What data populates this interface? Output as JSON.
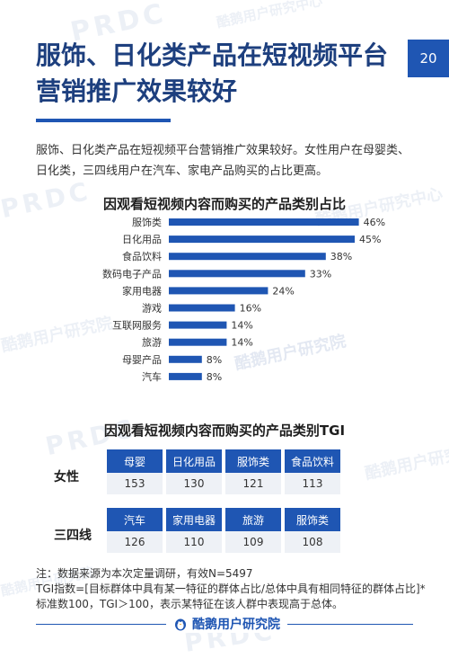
{
  "page": {
    "number": "20",
    "title": "服饰、日化类产品在短视频平台营销推广效果较好",
    "intro": "服饰、日化类产品在短视频平台营销推广效果较好。女性用户在母婴类、日化类，三四线用户在汽车、家电产品购买的占比更高。"
  },
  "watermarks": {
    "brand_en": "PRDC",
    "brand_en_sub": "酷鹅用户研究中心",
    "brand_cn": "酷鹅用户研究院"
  },
  "colors": {
    "accent": "#1f56b3",
    "title": "#1d3f7e",
    "cell_bg": "#eef1f6"
  },
  "chart_data": [
    {
      "type": "bar",
      "orientation": "horizontal",
      "title": "因观看短视频内容而购买的产品类别占比",
      "categories": [
        "服饰类",
        "日化用品",
        "食品饮料",
        "数码电子产品",
        "家用电器",
        "游戏",
        "互联网服务",
        "旅游",
        "母婴产品",
        "汽车"
      ],
      "values": [
        46,
        45,
        38,
        33,
        24,
        16,
        14,
        14,
        8,
        8
      ],
      "value_labels": [
        "46%",
        "45%",
        "38%",
        "33%",
        "24%",
        "16%",
        "14%",
        "14%",
        "8%",
        "8%"
      ],
      "xlim": [
        0,
        50
      ],
      "grid": false,
      "color": "#1f56b3"
    },
    {
      "type": "table",
      "title": "因观看短视频内容而购买的产品类别TGI",
      "groups": [
        {
          "name": "女性",
          "categories": [
            "母婴",
            "日化用品",
            "服饰类",
            "食品饮料"
          ],
          "values": [
            "153",
            "130",
            "121",
            "113"
          ]
        },
        {
          "name": "三四线",
          "categories": [
            "汽车",
            "家用电器",
            "旅游",
            "服饰类"
          ],
          "values": [
            "126",
            "110",
            "109",
            "108"
          ]
        }
      ]
    }
  ],
  "notes": {
    "line1": "注：数据来源为本次定量调研，有效N=5497",
    "line2": "TGI指数=[目标群体中具有某一特征的群体占比/总体中具有相同特征的群体占比]*标准数100，TGI＞100，表示某特征在该人群中表现高于总体。"
  },
  "footer": {
    "brand": "酷鹅用户研究院",
    "icon": "penguin-logo-icon"
  }
}
